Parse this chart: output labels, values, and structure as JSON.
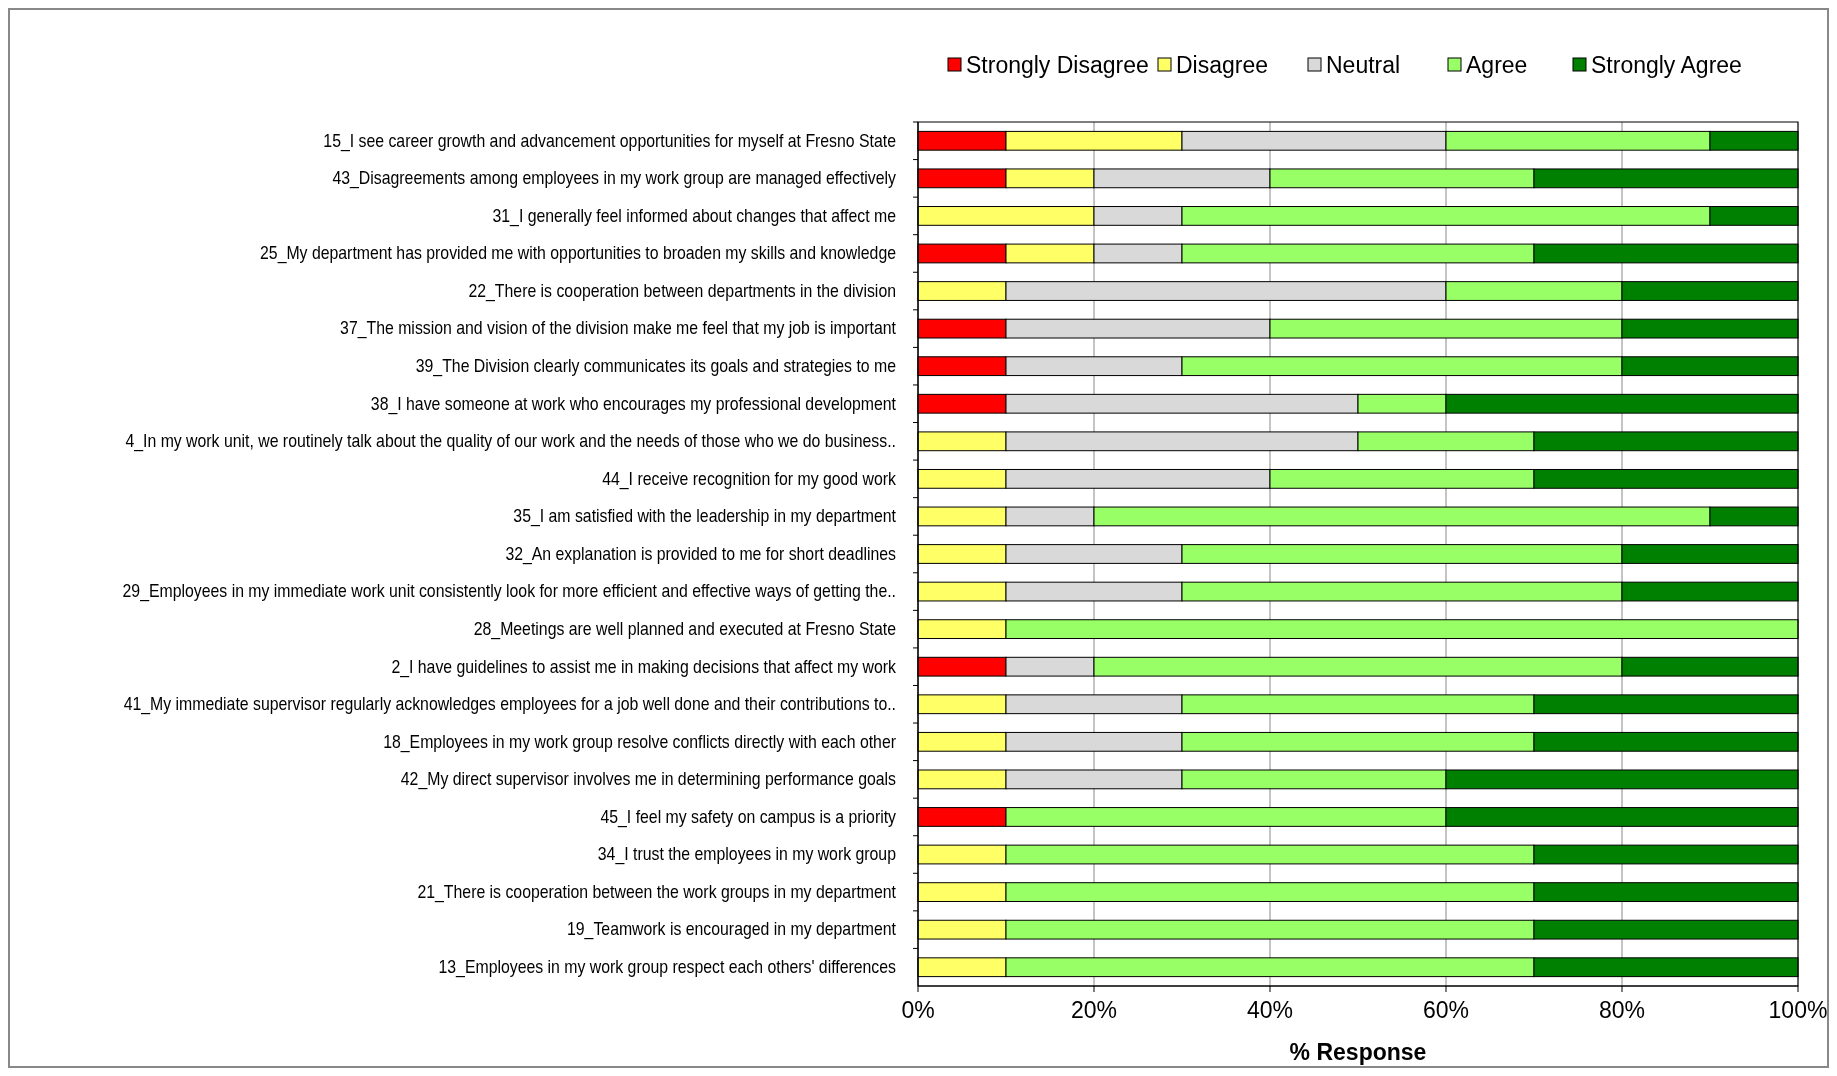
{
  "chart_data": {
    "type": "bar",
    "orientation": "horizontal",
    "stacked": true,
    "xlabel": "% Response",
    "legend": "top right",
    "grid": "x",
    "categories": [
      "15_I see career growth and advancement opportunities for myself at Fresno State",
      "43_Disagreements among employees in my work group are managed effectively",
      "31_I generally feel informed about changes that affect me",
      "25_My department has provided me with opportunities to broaden my skills and knowledge",
      "22_There is cooperation between departments in the division",
      "37_The mission and vision of the division make me feel that my job is important",
      "39_The Division clearly communicates its goals and strategies to me",
      "38_I have someone at work who encourages my professional development",
      "4_In my work unit, we routinely talk about the quality of our work and the needs of those who we do business..",
      "44_I receive recognition for my good work",
      "35_I am satisfied with the leadership in my department",
      "32_An explanation is provided to me for short deadlines",
      "29_Employees in my immediate work unit consistently look for more efficient and effective ways of getting the..",
      "28_Meetings are well planned and executed at Fresno State",
      "2_I have guidelines to assist me in making decisions that affect my work",
      "41_My immediate supervisor regularly acknowledges employees for a job well done and their contributions to..",
      "18_Employees in my work group resolve conflicts directly with each other",
      "42_My direct supervisor involves me in determining performance goals",
      "45_I feel my safety on campus is a priority",
      "34_I trust the employees in my work group",
      "21_There is cooperation between the work groups in my department",
      "19_Teamwork is encouraged in my department",
      "13_Employees in my work group respect each others' differences"
    ],
    "series": [
      {
        "name": "Strongly Disagree",
        "color": "#ff0000",
        "values": [
          10,
          10,
          0,
          10,
          0,
          10,
          10,
          10,
          0,
          0,
          0,
          0,
          0,
          0,
          10,
          0,
          0,
          0,
          10,
          0,
          0,
          0,
          0
        ]
      },
      {
        "name": "Disagree",
        "color": "#ffff66",
        "values": [
          20,
          10,
          20,
          10,
          10,
          0,
          0,
          0,
          10,
          10,
          10,
          10,
          10,
          10,
          0,
          10,
          10,
          10,
          0,
          10,
          10,
          10,
          10
        ]
      },
      {
        "name": "Neutral",
        "color": "#d9d9d9",
        "values": [
          30,
          20,
          10,
          10,
          50,
          30,
          20,
          40,
          40,
          30,
          10,
          20,
          20,
          0,
          10,
          20,
          20,
          20,
          0,
          0,
          0,
          0,
          0
        ]
      },
      {
        "name": "Agree",
        "color": "#99ff66",
        "values": [
          30,
          30,
          60,
          40,
          20,
          40,
          50,
          10,
          20,
          30,
          70,
          50,
          50,
          90,
          60,
          40,
          40,
          30,
          50,
          60,
          60,
          60,
          60
        ]
      },
      {
        "name": "Strongly Agree",
        "color": "#008000",
        "values": [
          10,
          30,
          10,
          30,
          20,
          20,
          20,
          40,
          30,
          30,
          10,
          20,
          20,
          0,
          20,
          30,
          30,
          40,
          40,
          30,
          30,
          30,
          30
        ]
      }
    ],
    "xlim": [
      0,
      100
    ],
    "xticks": [
      {
        "value": 0,
        "label": "0%"
      },
      {
        "value": 20,
        "label": "20%"
      },
      {
        "value": 40,
        "label": "40%"
      },
      {
        "value": 60,
        "label": "60%"
      },
      {
        "value": 80,
        "label": "80%"
      },
      {
        "value": 100,
        "label": "100%"
      }
    ]
  }
}
